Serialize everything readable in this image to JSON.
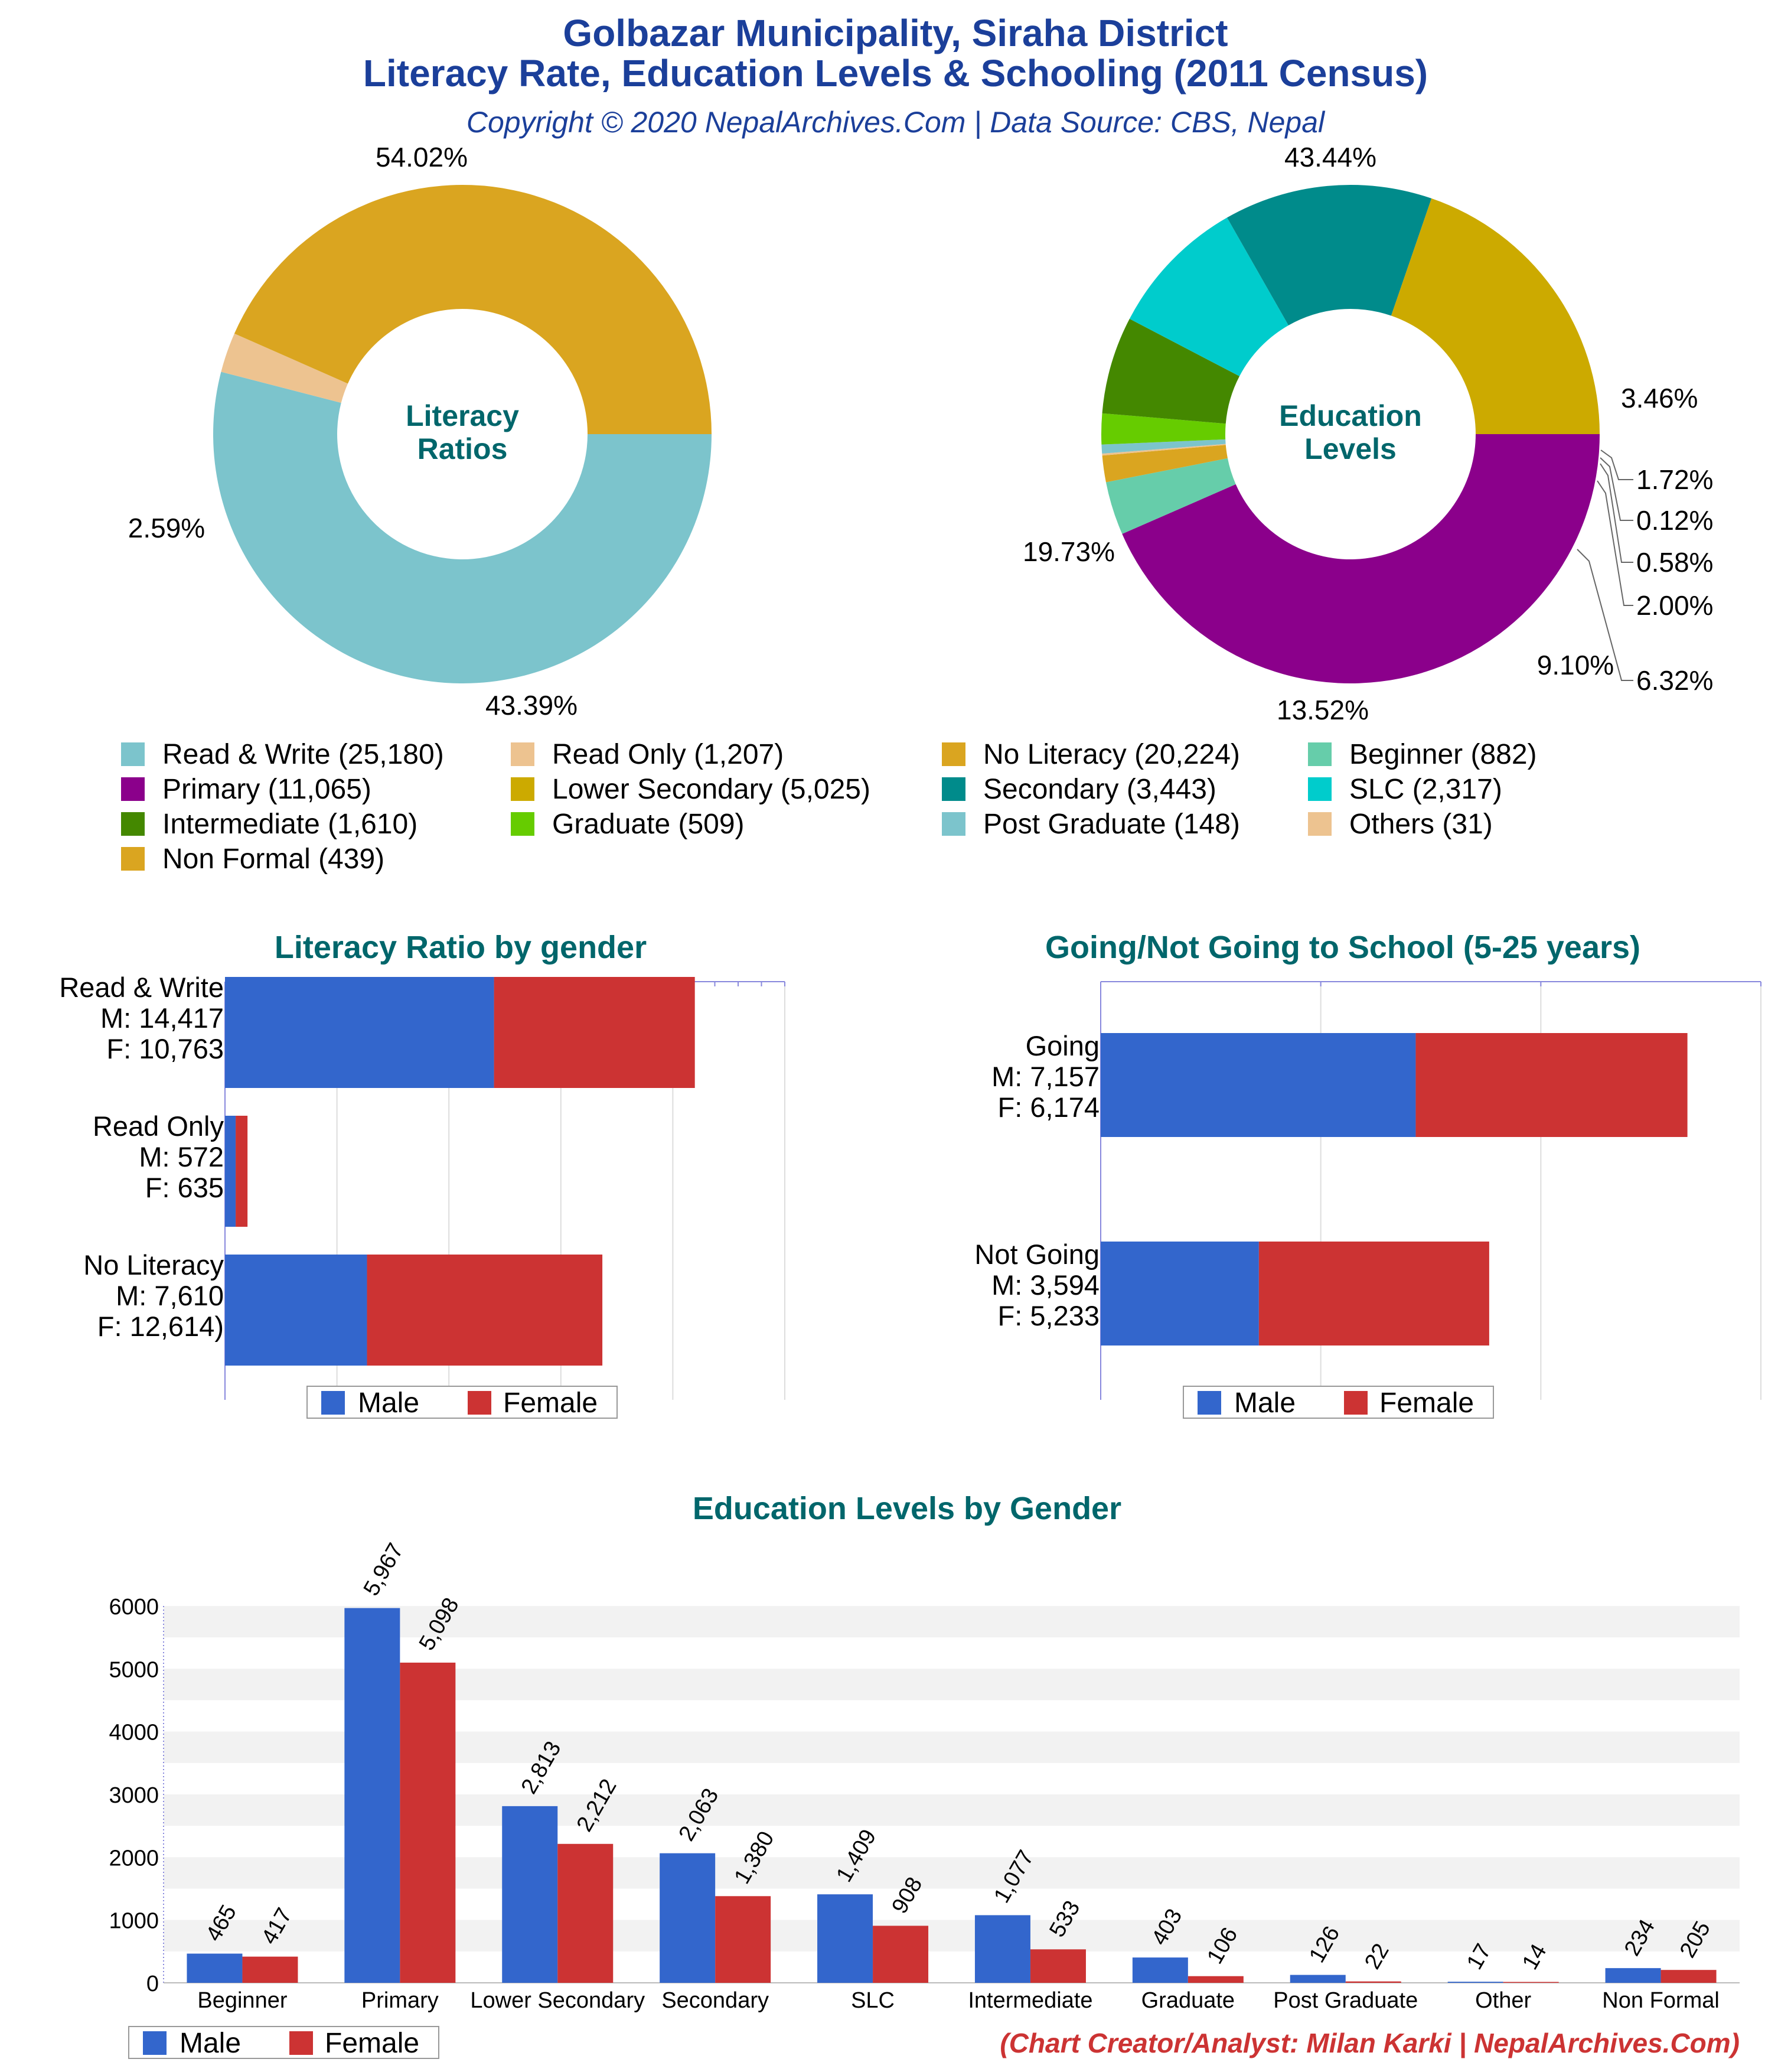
{
  "header": {
    "title_line1": "Golbazar Municipality, Siraha District",
    "title_line2": "Literacy Rate, Education Levels & Schooling (2011 Census)",
    "subtitle": "Copyright © 2020 NepalArchives.Com | Data Source: CBS, Nepal"
  },
  "colors": {
    "title": "#1b3f9a",
    "section_title": "#00666b",
    "male": "#3366cc",
    "female": "#cc3333",
    "credit": "#cc3333"
  },
  "legend": [
    {
      "text": "Read & Write (25,180)",
      "color": "#7cc4cc"
    },
    {
      "text": "Read Only (1,207)",
      "color": "#edc390"
    },
    {
      "text": "No Literacy (20,224)",
      "color": "#daa520"
    },
    {
      "text": "Beginner (882)",
      "color": "#66cdaa"
    },
    {
      "text": "Primary (11,065)",
      "color": "#8b008b"
    },
    {
      "text": "Lower Secondary (5,025)",
      "color": "#ccaa00"
    },
    {
      "text": "Secondary (3,443)",
      "color": "#008b8b"
    },
    {
      "text": "SLC (2,317)",
      "color": "#00cccc"
    },
    {
      "text": "Intermediate (1,610)",
      "color": "#448800"
    },
    {
      "text": "Graduate (509)",
      "color": "#66cc00"
    },
    {
      "text": "Post Graduate (148)",
      "color": "#7cc4cc"
    },
    {
      "text": "Others (31)",
      "color": "#edc390"
    },
    {
      "text": "Non Formal (439)",
      "color": "#daa520"
    }
  ],
  "bar_legend": {
    "male": "Male",
    "female": "Female"
  },
  "credit": "(Chart Creator/Analyst: Milan Karki | NepalArchives.Com)",
  "chart_data": [
    {
      "type": "pie",
      "title": "Literacy Ratios",
      "slices": [
        {
          "label": "Read & Write",
          "value": 25180,
          "percent_label": "54.02%",
          "color": "#7cc4cc"
        },
        {
          "label": "Read Only",
          "value": 1207,
          "percent_label": "2.59%",
          "color": "#edc390"
        },
        {
          "label": "No Literacy",
          "value": 20224,
          "percent_label": "43.39%",
          "color": "#daa520"
        }
      ]
    },
    {
      "type": "pie",
      "title": "Education Levels",
      "slices": [
        {
          "label": "Primary",
          "value": 11065,
          "percent_label": "43.44%",
          "color": "#8b008b"
        },
        {
          "label": "Beginner",
          "value": 882,
          "percent_label": "3.46%",
          "color": "#66cdaa"
        },
        {
          "label": "Non Formal",
          "value": 439,
          "percent_label": "1.72%",
          "color": "#daa520"
        },
        {
          "label": "Others",
          "value": 31,
          "percent_label": "0.12%",
          "color": "#edc390"
        },
        {
          "label": "Post Graduate",
          "value": 148,
          "percent_label": "0.58%",
          "color": "#7cc4cc"
        },
        {
          "label": "Graduate",
          "value": 509,
          "percent_label": "2.00%",
          "color": "#66cc00"
        },
        {
          "label": "Intermediate",
          "value": 1610,
          "percent_label": "6.32%",
          "color": "#448800"
        },
        {
          "label": "SLC",
          "value": 2317,
          "percent_label": "9.10%",
          "color": "#00cccc"
        },
        {
          "label": "Secondary",
          "value": 3443,
          "percent_label": "13.52%",
          "color": "#008b8b"
        },
        {
          "label": "Lower Secondary",
          "value": 5025,
          "percent_label": "19.73%",
          "color": "#ccaa00"
        }
      ]
    },
    {
      "type": "bar",
      "orientation": "horizontal-stacked",
      "title": "Literacy Ratio by gender",
      "categories": [
        [
          "Read & Write",
          "M: 14,417",
          "F: 10,763"
        ],
        [
          "Read Only",
          "M: 572",
          "F: 635"
        ],
        [
          "No Literacy",
          "M: 7,610",
          "F: 12,614)"
        ]
      ],
      "series": [
        {
          "name": "Male",
          "values": [
            14417,
            572,
            7610
          ]
        },
        {
          "name": "Female",
          "values": [
            10763,
            635,
            12614
          ]
        }
      ],
      "xlim": [
        0,
        30000
      ],
      "legend": "bottom"
    },
    {
      "type": "bar",
      "orientation": "horizontal-stacked",
      "title": "Going/Not Going to School (5-25 years)",
      "categories": [
        [
          "Going",
          "M: 7,157",
          "F: 6,174"
        ],
        [
          "Not Going",
          "M: 3,594",
          "F: 5,233"
        ]
      ],
      "series": [
        {
          "name": "Male",
          "values": [
            7157,
            3594
          ]
        },
        {
          "name": "Female",
          "values": [
            6174,
            5233
          ]
        }
      ],
      "xlim": [
        0,
        15000
      ],
      "legend": "bottom"
    },
    {
      "type": "bar",
      "title": "Education Levels by Gender",
      "categories": [
        "Beginner",
        "Primary",
        "Lower Secondary",
        "Secondary",
        "SLC",
        "Intermediate",
        "Graduate",
        "Post Graduate",
        "Other",
        "Non Formal"
      ],
      "series": [
        {
          "name": "Male",
          "values": [
            465,
            5967,
            2813,
            2063,
            1409,
            1077,
            403,
            126,
            17,
            234
          ],
          "labels": [
            "465",
            "5,967",
            "2,813",
            "2,063",
            "1,409",
            "1,077",
            "403",
            "126",
            "17",
            "234"
          ]
        },
        {
          "name": "Female",
          "values": [
            417,
            5098,
            2212,
            1380,
            908,
            533,
            106,
            22,
            14,
            205
          ],
          "labels": [
            "417",
            "5,098",
            "2,212",
            "1,380",
            "908",
            "533",
            "106",
            "22",
            "14",
            "205"
          ]
        }
      ],
      "yticks": [
        "0",
        "1000",
        "2000",
        "3000",
        "4000",
        "5000",
        "6000"
      ],
      "ylim": [
        0,
        6000
      ],
      "legend": "bottom-left"
    }
  ]
}
